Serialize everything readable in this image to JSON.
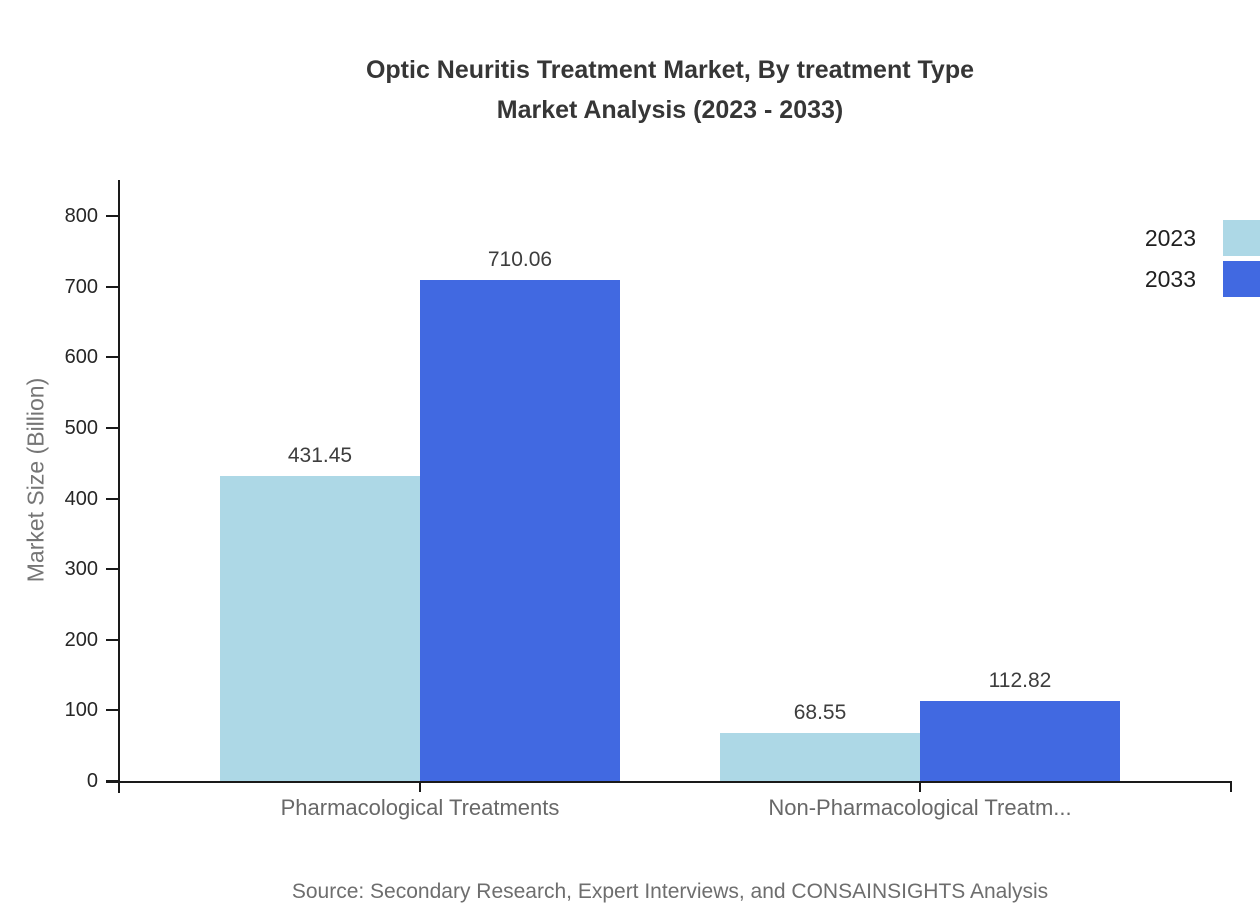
{
  "page": {
    "background": "#ffffff"
  },
  "chart_data": {
    "type": "bar",
    "title_lines": [
      "Optic Neuritis Treatment Market, By treatment Type",
      "Market Analysis (2023 - 2033)"
    ],
    "categories": [
      "Pharmacological Treatments",
      "Non-Pharmacological Treatm..."
    ],
    "series": [
      {
        "name": "2023",
        "color": "#ADD8E6",
        "values": [
          431.45,
          68.55
        ]
      },
      {
        "name": "2033",
        "color": "#4169E1",
        "values": [
          710.06,
          112.82
        ]
      }
    ],
    "xlabel": "",
    "ylabel": "Market Size (Billion)",
    "ylim": [
      0,
      800
    ],
    "ytick_step": 100,
    "grid": false,
    "legend_position": "top-right",
    "colors": {
      "axis": "#1a1a1a",
      "tick_label": "#262626",
      "category_label": "#686868",
      "bar_value_label": "#3d3d3d",
      "title": "#363636",
      "muted_text": "#6e6e6e"
    }
  },
  "footer": {
    "source": "Source: Secondary Research, Expert Interviews, and CONSAINSIGHTS Analysis"
  }
}
